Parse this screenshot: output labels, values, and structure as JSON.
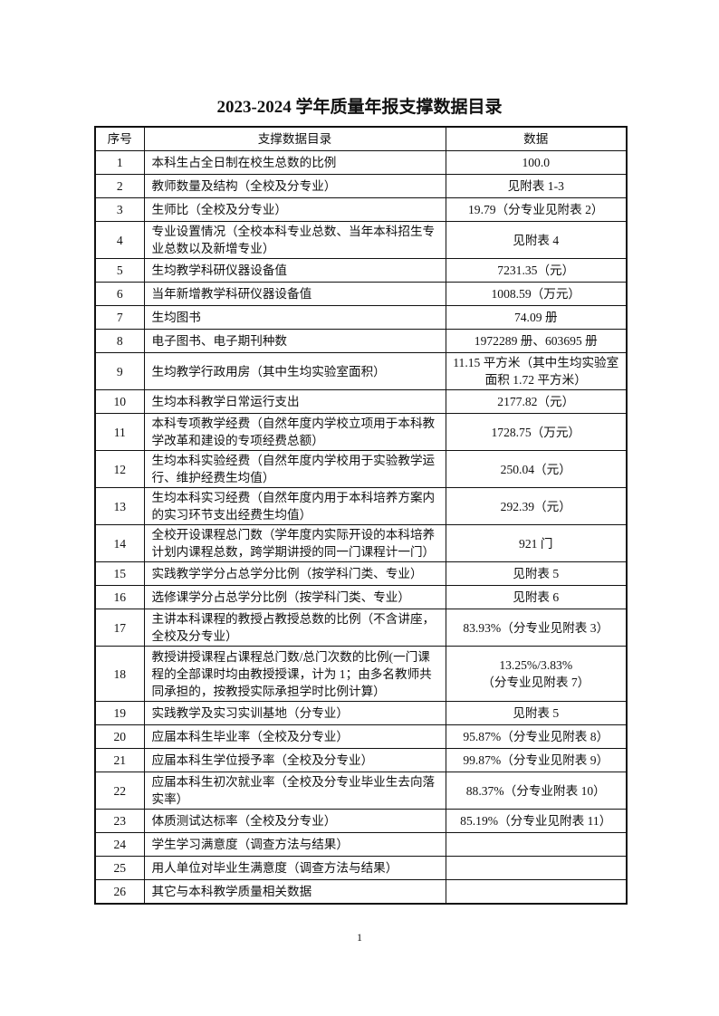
{
  "title": "2023-2024 学年质量年报支撑数据目录",
  "headers": [
    "序号",
    "支撑数据目录",
    "数据"
  ],
  "rows": [
    {
      "no": "1",
      "item": "本科生占全日制在校生总数的比例",
      "data": "100.0"
    },
    {
      "no": "2",
      "item": "教师数量及结构（全校及分专业）",
      "data": "见附表 1-3"
    },
    {
      "no": "3",
      "item": "生师比（全校及分专业）",
      "data": "19.79（分专业见附表 2）"
    },
    {
      "no": "4",
      "item": "专业设置情况（全校本科专业总数、当年本科招生专业总数以及新增专业）",
      "data": "见附表 4"
    },
    {
      "no": "5",
      "item": "生均教学科研仪器设备值",
      "data": "7231.35（元）"
    },
    {
      "no": "6",
      "item": "当年新增教学科研仪器设备值",
      "data": "1008.59（万元）"
    },
    {
      "no": "7",
      "item": "生均图书",
      "data": "74.09 册"
    },
    {
      "no": "8",
      "item": "电子图书、电子期刊种数",
      "data": "1972289 册、603695 册"
    },
    {
      "no": "9",
      "item": "生均教学行政用房（其中生均实验室面积）",
      "data": "11.15 平方米（其中生均实验室面积 1.72 平方米）"
    },
    {
      "no": "10",
      "item": "生均本科教学日常运行支出",
      "data": "2177.82（元）"
    },
    {
      "no": "11",
      "item": "本科专项教学经费（自然年度内学校立项用于本科教学改革和建设的专项经费总额）",
      "data": "1728.75（万元）"
    },
    {
      "no": "12",
      "item": "生均本科实验经费（自然年度内学校用于实验教学运行、维护经费生均值）",
      "data": "250.04（元）"
    },
    {
      "no": "13",
      "item": "生均本科实习经费（自然年度内用于本科培养方案内的实习环节支出经费生均值）",
      "data": "292.39（元）"
    },
    {
      "no": "14",
      "item": "全校开设课程总门数（学年度内实际开设的本科培养计划内课程总数，跨学期讲授的同一门课程计一门）",
      "data": "921 门"
    },
    {
      "no": "15",
      "item": "实践教学学分占总学分比例（按学科门类、专业）",
      "data": "见附表 5"
    },
    {
      "no": "16",
      "item": "选修课学分占总学分比例（按学科门类、专业）",
      "data": "见附表 6"
    },
    {
      "no": "17",
      "item": "主讲本科课程的教授占教授总数的比例（不含讲座，全校及分专业）",
      "data": "83.93%（分专业见附表 3）"
    },
    {
      "no": "18",
      "item": "教授讲授课程占课程总门数/总门次数的比例(一门课程的全部课时均由教授授课，计为 1；由多名教师共同承担的，按教授实际承担学时比例计算）",
      "data": "13.25%/3.83%",
      "data2": "（分专业见附表 7）"
    },
    {
      "no": "19",
      "item": "实践教学及实习实训基地（分专业）",
      "data": "见附表 5"
    },
    {
      "no": "20",
      "item": "应届本科生毕业率（全校及分专业）",
      "data": "95.87%（分专业见附表 8）"
    },
    {
      "no": "21",
      "item": "应届本科生学位授予率（全校及分专业）",
      "data": "99.87%（分专业见附表 9）"
    },
    {
      "no": "22",
      "item": "应届本科生初次就业率（全校及分专业毕业生去向落实率）",
      "data": "88.37%（分专业附表 10）"
    },
    {
      "no": "23",
      "item": "体质测试达标率（全校及分专业）",
      "data": "85.19%（分专业见附表 11）"
    },
    {
      "no": "24",
      "item": "学生学习满意度（调查方法与结果）",
      "data": ""
    },
    {
      "no": "25",
      "item": "用人单位对毕业生满意度（调查方法与结果）",
      "data": ""
    },
    {
      "no": "26",
      "item": "其它与本科教学质量相关数据",
      "data": ""
    }
  ],
  "page_number": "1"
}
